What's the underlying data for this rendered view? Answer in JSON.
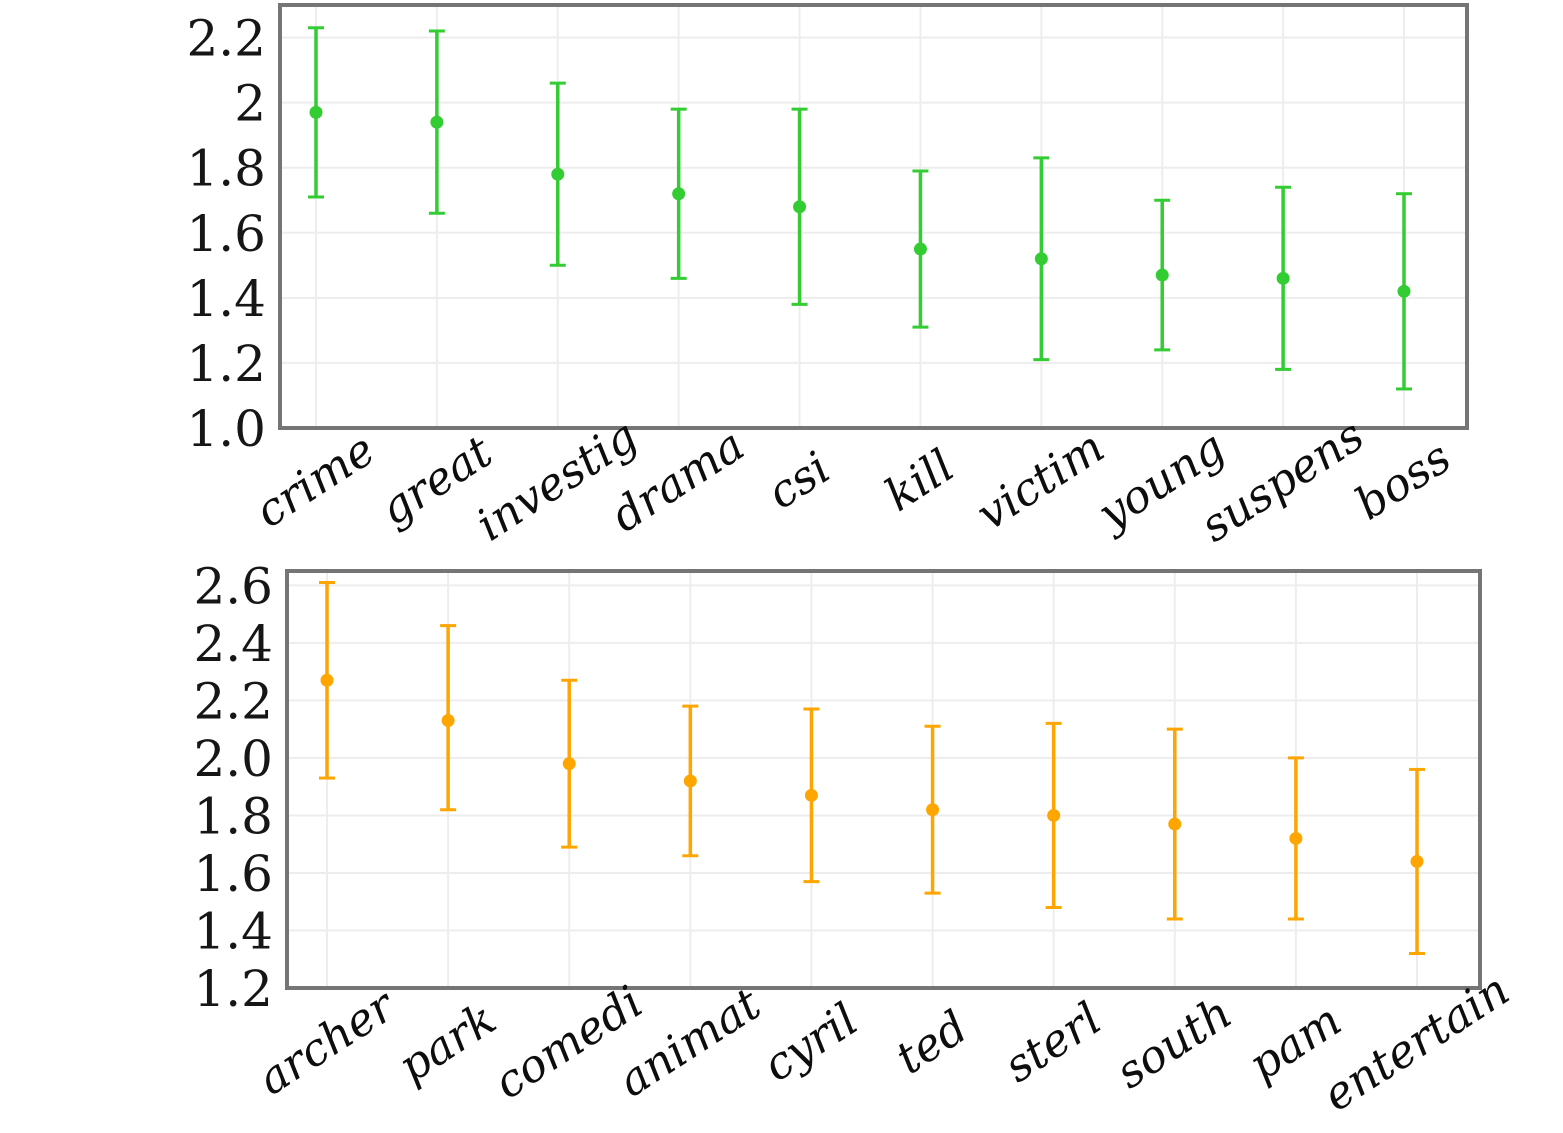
{
  "figure": {
    "background": "#ffffff",
    "border_color": "#757575",
    "grid_color": "#ededed",
    "text_color": "#161616"
  },
  "chart_data": [
    {
      "type": "scatter",
      "subtype": "point-with-error-bars",
      "title": "",
      "xlabel": "",
      "ylabel": "",
      "legend": "none",
      "grid": "on",
      "marker_color": "#33cc33",
      "categories": [
        "crime",
        "great",
        "investig",
        "drama",
        "csi",
        "kill",
        "victim",
        "young",
        "suspens",
        "boss"
      ],
      "values": [
        1.97,
        1.94,
        1.78,
        1.72,
        1.68,
        1.55,
        1.52,
        1.47,
        1.46,
        1.42
      ],
      "error_low": [
        1.71,
        1.66,
        1.5,
        1.46,
        1.38,
        1.31,
        1.21,
        1.24,
        1.18,
        1.12
      ],
      "error_high": [
        2.23,
        2.22,
        2.06,
        1.98,
        1.98,
        1.79,
        1.83,
        1.7,
        1.74,
        1.72
      ],
      "ylim": [
        1.0,
        2.3
      ],
      "yticks": [
        {
          "value": 2.2,
          "label": "2.2"
        },
        {
          "value": 2.0,
          "label": "2"
        },
        {
          "value": 1.8,
          "label": "1.8"
        },
        {
          "value": 1.6,
          "label": "1.6"
        },
        {
          "value": 1.4,
          "label": "1.4"
        },
        {
          "value": 1.2,
          "label": "1.2"
        },
        {
          "value": 1.0,
          "label": "1.0"
        }
      ]
    },
    {
      "type": "scatter",
      "subtype": "point-with-error-bars",
      "title": "",
      "xlabel": "",
      "ylabel": "",
      "legend": "none",
      "grid": "on",
      "marker_color": "#ffa500",
      "categories": [
        "archer",
        "park",
        "comedi",
        "animat",
        "cyril",
        "ted",
        "sterl",
        "south",
        "pam",
        "entertain"
      ],
      "values": [
        2.27,
        2.13,
        1.98,
        1.92,
        1.87,
        1.82,
        1.8,
        1.77,
        1.72,
        1.64
      ],
      "error_low": [
        1.93,
        1.82,
        1.69,
        1.66,
        1.57,
        1.53,
        1.48,
        1.44,
        1.44,
        1.32
      ],
      "error_high": [
        2.61,
        2.46,
        2.27,
        2.18,
        2.17,
        2.11,
        2.12,
        2.1,
        2.0,
        1.96
      ],
      "ylim": [
        1.2,
        2.65
      ],
      "yticks": [
        {
          "value": 2.6,
          "label": "2.6"
        },
        {
          "value": 2.4,
          "label": "2.4"
        },
        {
          "value": 2.2,
          "label": "2.2"
        },
        {
          "value": 2.0,
          "label": "2.0"
        },
        {
          "value": 1.8,
          "label": "1.8"
        },
        {
          "value": 1.6,
          "label": "1.6"
        },
        {
          "value": 1.4,
          "label": "1.4"
        },
        {
          "value": 1.2,
          "label": "1.2"
        }
      ]
    }
  ]
}
